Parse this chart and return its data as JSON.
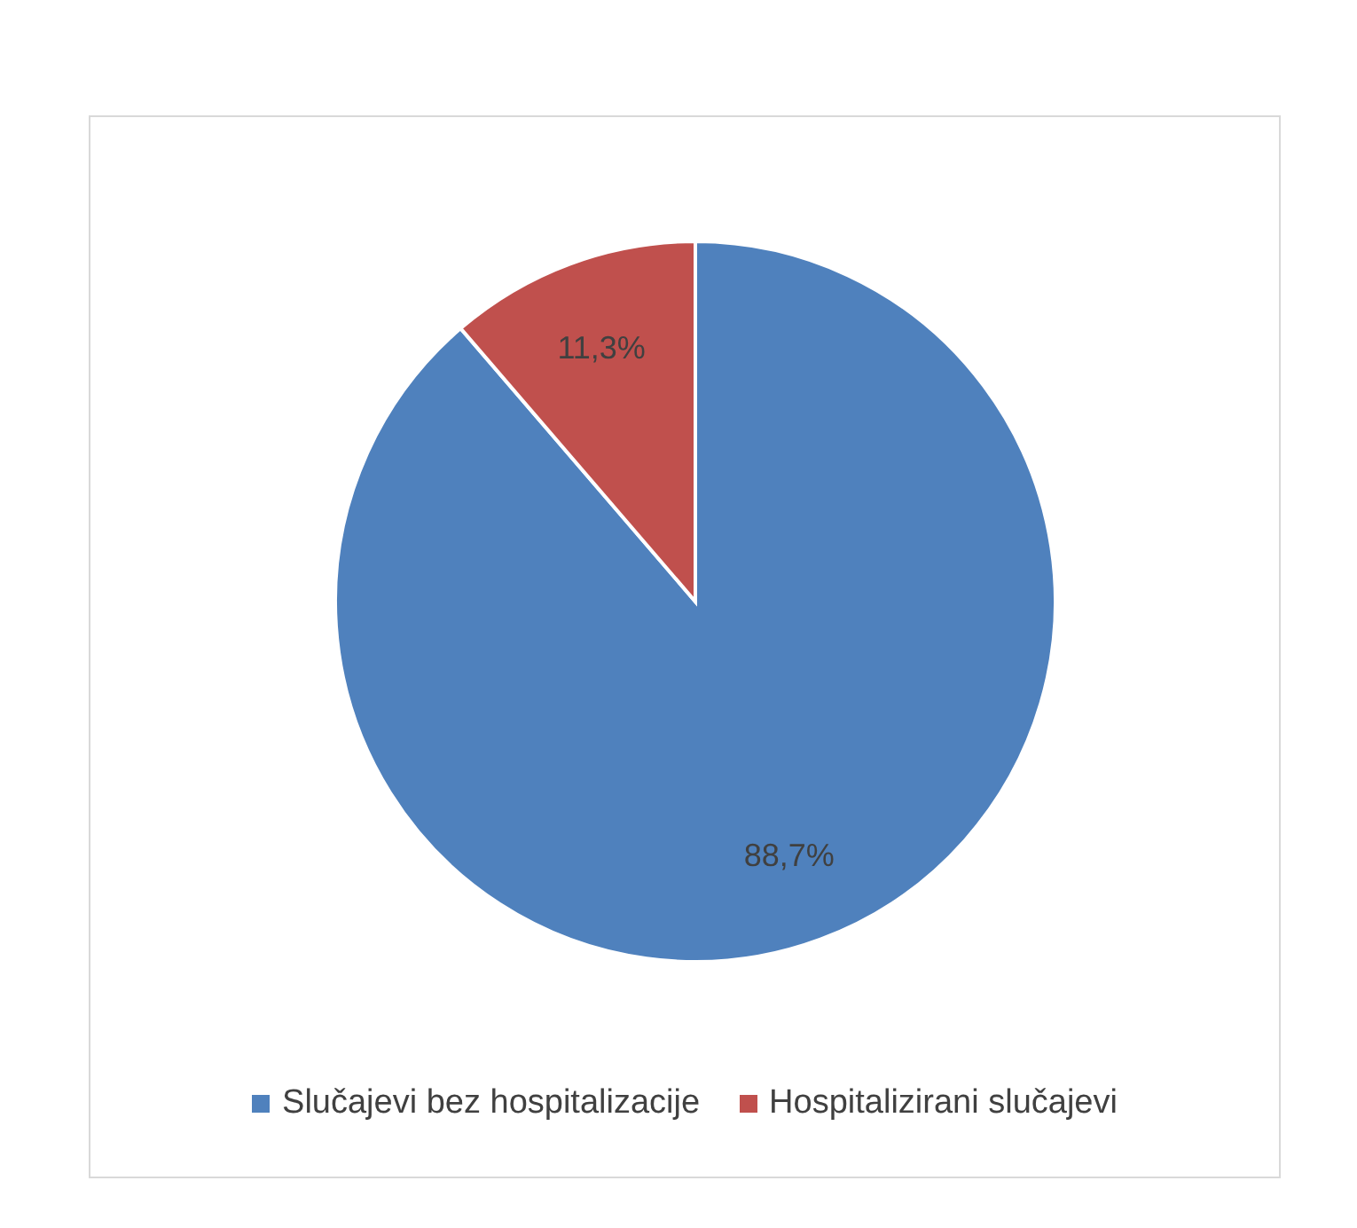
{
  "chart_data": {
    "type": "pie",
    "categories": [
      "Slučajevi bez hospitalizacije",
      "Hospitalizirani slučajevi"
    ],
    "values": [
      88.7,
      11.3
    ],
    "colors": [
      "#4f81bd",
      "#c0504d"
    ],
    "value_labels": [
      "88,7%",
      "11,3%"
    ],
    "legend": "bottom"
  }
}
